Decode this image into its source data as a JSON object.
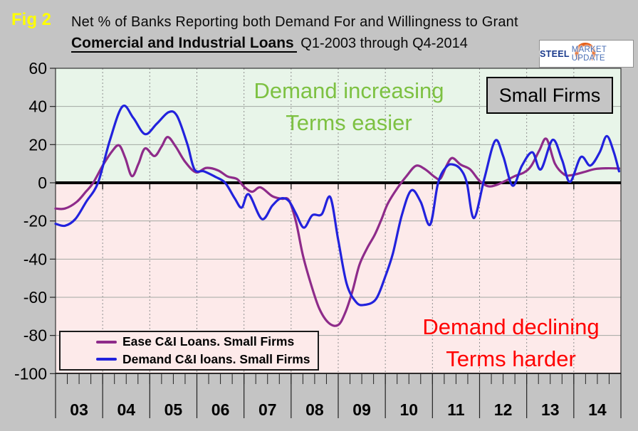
{
  "header": {
    "fig_label": "Fig 2",
    "title_line1": "Net % of Banks Reporting both Demand For and Willingness to Grant",
    "title_line2_bold": "Comercial and Industrial Loans",
    "title_line2_rest": " Q1-2003 through Q4-2014",
    "logo_steel": "STEEL",
    "logo_rest": "MARKET UPDATE"
  },
  "chart_data": {
    "type": "line",
    "title": "Net % of Banks Reporting both Demand For and Willingness to Grant Comercial and Industrial Loans, Q1-2003 through Q4-2014",
    "x_axis": {
      "labels": [
        "03",
        "04",
        "05",
        "06",
        "07",
        "08",
        "09",
        "10",
        "11",
        "12",
        "13",
        "14"
      ],
      "range_years": [
        2003,
        2015
      ],
      "minor_ticks_per_year": 4
    },
    "y_axis": {
      "ticks": [
        60,
        40,
        20,
        0,
        -20,
        -40,
        -60,
        -80,
        -100
      ],
      "range": [
        -100,
        60
      ]
    },
    "grid": {
      "h_lines": [
        40,
        20,
        -20,
        -40,
        -60,
        -80
      ],
      "v_lines_at_years": true
    },
    "zones": {
      "positive_fill": "#e8f5e9",
      "negative_fill": "#fdeaea"
    },
    "annotations": [
      {
        "id": "positive-zone",
        "lines": [
          "Demand increasing",
          "Terms easier"
        ],
        "color": "#7dc142"
      },
      {
        "id": "negative-zone",
        "lines": [
          "Demand declining",
          "Terms harder"
        ],
        "color": "#ff0000"
      },
      {
        "id": "firms-box",
        "lines": [
          "Small Firms"
        ],
        "color": "#000000"
      }
    ],
    "legend_position": "inside-bottom-left",
    "series": [
      {
        "name": "Ease C&I Loans. Small Firms",
        "color": "#8e2b8a",
        "points": [
          [
            2003.0,
            -13.5
          ],
          [
            2003.2,
            -13.5
          ],
          [
            2003.45,
            -10
          ],
          [
            2003.65,
            -4.5
          ],
          [
            2003.8,
            0
          ],
          [
            2004.0,
            9
          ],
          [
            2004.2,
            16.5
          ],
          [
            2004.35,
            19.6
          ],
          [
            2004.48,
            13
          ],
          [
            2004.62,
            3.5
          ],
          [
            2004.76,
            10
          ],
          [
            2004.9,
            18
          ],
          [
            2005.1,
            14
          ],
          [
            2005.25,
            19
          ],
          [
            2005.38,
            24
          ],
          [
            2005.55,
            19
          ],
          [
            2005.75,
            11
          ],
          [
            2005.98,
            5.5
          ],
          [
            2006.2,
            7.8
          ],
          [
            2006.45,
            6.5
          ],
          [
            2006.65,
            3.3
          ],
          [
            2006.85,
            2
          ],
          [
            2007.0,
            -2
          ],
          [
            2007.17,
            -4.7
          ],
          [
            2007.35,
            -2.4
          ],
          [
            2007.6,
            -7
          ],
          [
            2007.8,
            -8.4
          ],
          [
            2007.95,
            -9
          ],
          [
            2008.1,
            -20
          ],
          [
            2008.25,
            -38
          ],
          [
            2008.42,
            -53
          ],
          [
            2008.6,
            -66
          ],
          [
            2008.8,
            -73.5
          ],
          [
            2009.0,
            -74.5
          ],
          [
            2009.15,
            -68
          ],
          [
            2009.3,
            -57
          ],
          [
            2009.45,
            -43
          ],
          [
            2009.62,
            -34
          ],
          [
            2009.78,
            -27
          ],
          [
            2009.92,
            -19
          ],
          [
            2010.05,
            -11
          ],
          [
            2010.25,
            -3
          ],
          [
            2010.45,
            3.5
          ],
          [
            2010.65,
            8.9
          ],
          [
            2010.85,
            7
          ],
          [
            2011.05,
            3
          ],
          [
            2011.17,
            2.2
          ],
          [
            2011.3,
            9
          ],
          [
            2011.42,
            13
          ],
          [
            2011.6,
            9.5
          ],
          [
            2011.8,
            7
          ],
          [
            2012.0,
            1
          ],
          [
            2012.18,
            -1.8
          ],
          [
            2012.35,
            -1.2
          ],
          [
            2012.55,
            1
          ],
          [
            2012.75,
            3.5
          ],
          [
            2012.95,
            5.5
          ],
          [
            2013.1,
            9
          ],
          [
            2013.27,
            17
          ],
          [
            2013.42,
            23
          ],
          [
            2013.6,
            10
          ],
          [
            2013.8,
            4.3
          ],
          [
            2013.95,
            4
          ],
          [
            2014.2,
            5.5
          ],
          [
            2014.45,
            7.2
          ],
          [
            2014.7,
            7.6
          ],
          [
            2014.96,
            7.5
          ]
        ]
      },
      {
        "name": "Demand C&I loans. Small Firms",
        "color": "#2222dd",
        "points": [
          [
            2003.0,
            -21.5
          ],
          [
            2003.2,
            -22.5
          ],
          [
            2003.42,
            -19
          ],
          [
            2003.65,
            -10
          ],
          [
            2003.9,
            0
          ],
          [
            2004.15,
            22
          ],
          [
            2004.42,
            40
          ],
          [
            2004.65,
            34
          ],
          [
            2004.9,
            25.5
          ],
          [
            2005.15,
            31
          ],
          [
            2005.4,
            37
          ],
          [
            2005.58,
            35
          ],
          [
            2005.8,
            20
          ],
          [
            2005.95,
            7
          ],
          [
            2006.15,
            6
          ],
          [
            2006.4,
            3
          ],
          [
            2006.6,
            0
          ],
          [
            2006.8,
            -8
          ],
          [
            2006.95,
            -13
          ],
          [
            2007.1,
            -6
          ],
          [
            2007.38,
            -19
          ],
          [
            2007.6,
            -12
          ],
          [
            2007.78,
            -8.2
          ],
          [
            2007.95,
            -9.5
          ],
          [
            2008.1,
            -16
          ],
          [
            2008.27,
            -23.5
          ],
          [
            2008.45,
            -17
          ],
          [
            2008.65,
            -16.5
          ],
          [
            2008.83,
            -7.5
          ],
          [
            2009.0,
            -30
          ],
          [
            2009.18,
            -53
          ],
          [
            2009.38,
            -62.5
          ],
          [
            2009.55,
            -64
          ],
          [
            2009.8,
            -61
          ],
          [
            2010.0,
            -49
          ],
          [
            2010.16,
            -37
          ],
          [
            2010.35,
            -17
          ],
          [
            2010.55,
            -4
          ],
          [
            2010.75,
            -10
          ],
          [
            2010.95,
            -22
          ],
          [
            2011.12,
            0
          ],
          [
            2011.3,
            8.5
          ],
          [
            2011.45,
            9.5
          ],
          [
            2011.6,
            7
          ],
          [
            2011.73,
            0
          ],
          [
            2011.88,
            -18.5
          ],
          [
            2012.1,
            2
          ],
          [
            2012.33,
            22
          ],
          [
            2012.5,
            14
          ],
          [
            2012.7,
            -1.5
          ],
          [
            2012.9,
            9
          ],
          [
            2013.12,
            16
          ],
          [
            2013.3,
            7
          ],
          [
            2013.55,
            22.5
          ],
          [
            2013.75,
            12
          ],
          [
            2013.92,
            0.5
          ],
          [
            2014.15,
            13.5
          ],
          [
            2014.35,
            9
          ],
          [
            2014.55,
            16
          ],
          [
            2014.7,
            24.5
          ],
          [
            2014.85,
            16
          ],
          [
            2014.96,
            6
          ]
        ]
      }
    ]
  }
}
